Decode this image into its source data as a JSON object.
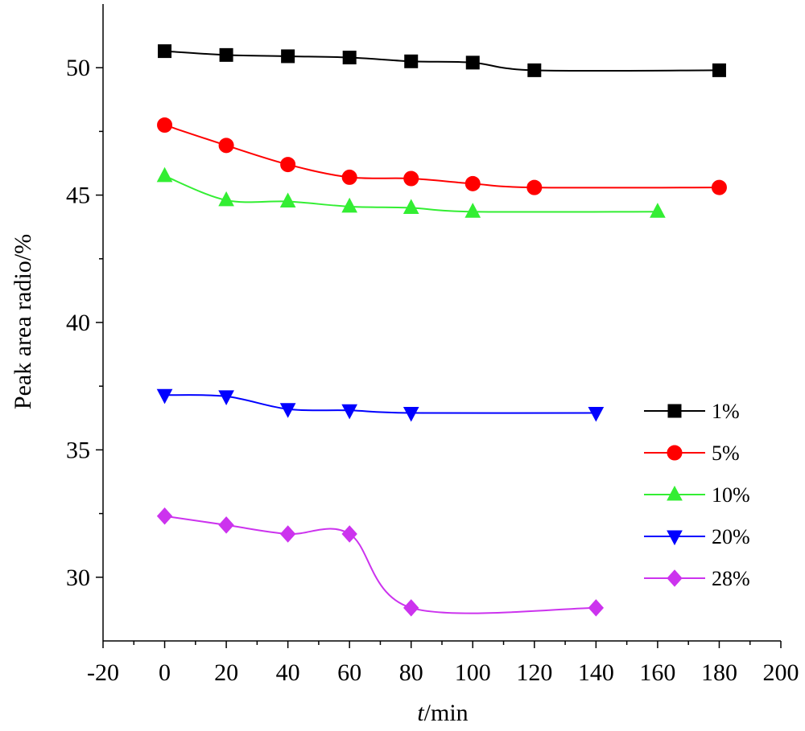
{
  "chart_data": {
    "type": "line",
    "title": "",
    "xlabel_italic": "t",
    "xlabel_rest": "/min",
    "ylabel": "Peak area radio/%",
    "xlim": [
      -20,
      200
    ],
    "ylim": [
      27.5,
      52.5
    ],
    "x_ticks": [
      -20,
      0,
      20,
      40,
      60,
      80,
      100,
      120,
      140,
      160,
      180,
      200
    ],
    "y_ticks": [
      30,
      35,
      40,
      45,
      50
    ],
    "legend_position": "right",
    "series": [
      {
        "name": "1%",
        "color": "#000000",
        "marker": "square",
        "x": [
          0,
          20,
          40,
          60,
          80,
          100,
          120,
          180
        ],
        "y": [
          50.65,
          50.5,
          50.45,
          50.4,
          50.25,
          50.2,
          49.9,
          49.9
        ]
      },
      {
        "name": "5%",
        "color": "#ff0000",
        "marker": "circle",
        "x": [
          0,
          20,
          40,
          60,
          80,
          100,
          120,
          180
        ],
        "y": [
          47.75,
          46.95,
          46.2,
          45.7,
          45.65,
          45.45,
          45.3,
          45.3
        ]
      },
      {
        "name": "10%",
        "color": "#33ee33",
        "marker": "triangle-up",
        "x": [
          0,
          20,
          40,
          60,
          80,
          100,
          160
        ],
        "y": [
          45.75,
          44.8,
          44.75,
          44.55,
          44.5,
          44.35,
          44.35
        ]
      },
      {
        "name": "20%",
        "color": "#0000ff",
        "marker": "triangle-down",
        "x": [
          0,
          20,
          40,
          60,
          80,
          140
        ],
        "y": [
          37.15,
          37.1,
          36.6,
          36.55,
          36.45,
          36.45
        ]
      },
      {
        "name": "28%",
        "color": "#cc33ee",
        "marker": "diamond",
        "x": [
          0,
          20,
          40,
          60,
          80,
          140
        ],
        "y": [
          32.4,
          32.05,
          31.7,
          31.7,
          28.8,
          28.8
        ]
      }
    ]
  }
}
